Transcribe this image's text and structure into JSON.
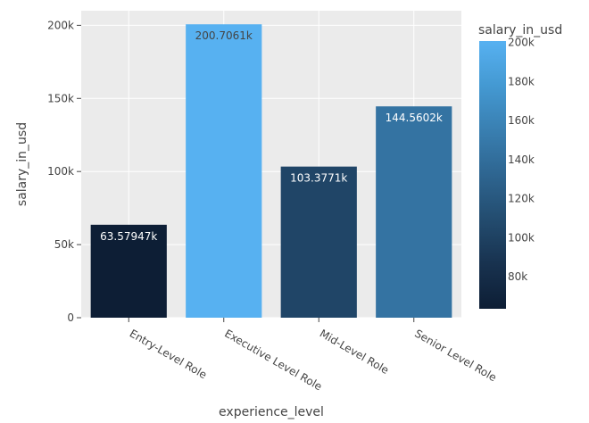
{
  "chart_data": {
    "type": "bar",
    "xlabel": "experience_level",
    "ylabel": "salary_in_usd",
    "categories": [
      "Entry-Level Role",
      "Executive Level Role",
      "Mid-Level Role",
      "Senior Level Role"
    ],
    "values": [
      63579.47,
      200706.1,
      103377.1,
      144560.2
    ],
    "value_labels": [
      "63.57947k",
      "200.7061k",
      "103.3771k",
      "144.5602k"
    ],
    "ylim": [
      0,
      210000
    ],
    "yticks": [
      0,
      50000,
      100000,
      150000,
      200000
    ],
    "ytick_labels": [
      "0",
      "50k",
      "100k",
      "150k",
      "200k"
    ],
    "grid": true,
    "colorbar": {
      "title": "salary_in_usd",
      "range": [
        63579.47,
        200706.1
      ],
      "ticks": [
        80000,
        100000,
        120000,
        140000,
        160000,
        180000,
        200000
      ],
      "tick_labels": [
        "80k",
        "100k",
        "120k",
        "140k",
        "160k",
        "180k",
        "200k"
      ],
      "colorscale": [
        "#0d1e35",
        "#18324f",
        "#234c6f",
        "#2e6590",
        "#397fb1",
        "#4499d2",
        "#57b1f1"
      ]
    },
    "colors": {
      "plot_bg": "#ebebeb",
      "grid": "#ffffff",
      "text": "#444444"
    }
  }
}
